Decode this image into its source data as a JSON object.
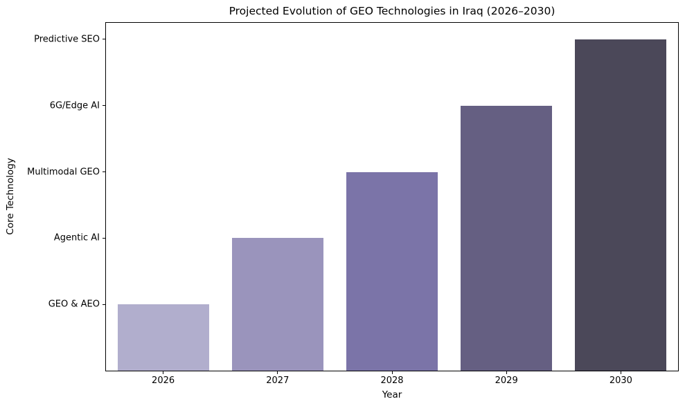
{
  "chart_data": {
    "type": "bar",
    "title": "Projected Evolution of GEO Technologies in Iraq (2026–2030)",
    "xlabel": "Year",
    "ylabel": "Core Technology",
    "categories": [
      "2026",
      "2027",
      "2028",
      "2029",
      "2030"
    ],
    "values": [
      1,
      2,
      3,
      4,
      5
    ],
    "ytick_positions": [
      1,
      2,
      3,
      4,
      5
    ],
    "ytick_labels": [
      "GEO & AEO",
      "Agentic AI",
      "Multimodal GEO",
      "6G/Edge AI",
      "Predictive SEO"
    ],
    "bar_colors": [
      "#b1aecd",
      "#9a94bc",
      "#7b74a8",
      "#655f82",
      "#4b4859"
    ],
    "ylim": [
      0,
      5.25
    ],
    "grid": false,
    "legend_position": "none",
    "background_color": "#ffffff",
    "spine_color": "#000000",
    "year_technology_map": [
      {
        "year": "2026",
        "technology": "GEO & AEO",
        "level": 1
      },
      {
        "year": "2027",
        "technology": "Agentic AI",
        "level": 2
      },
      {
        "year": "2028",
        "technology": "Multimodal GEO",
        "level": 3
      },
      {
        "year": "2029",
        "technology": "6G/Edge AI",
        "level": 4
      },
      {
        "year": "2030",
        "technology": "Predictive SEO",
        "level": 5
      }
    ]
  }
}
